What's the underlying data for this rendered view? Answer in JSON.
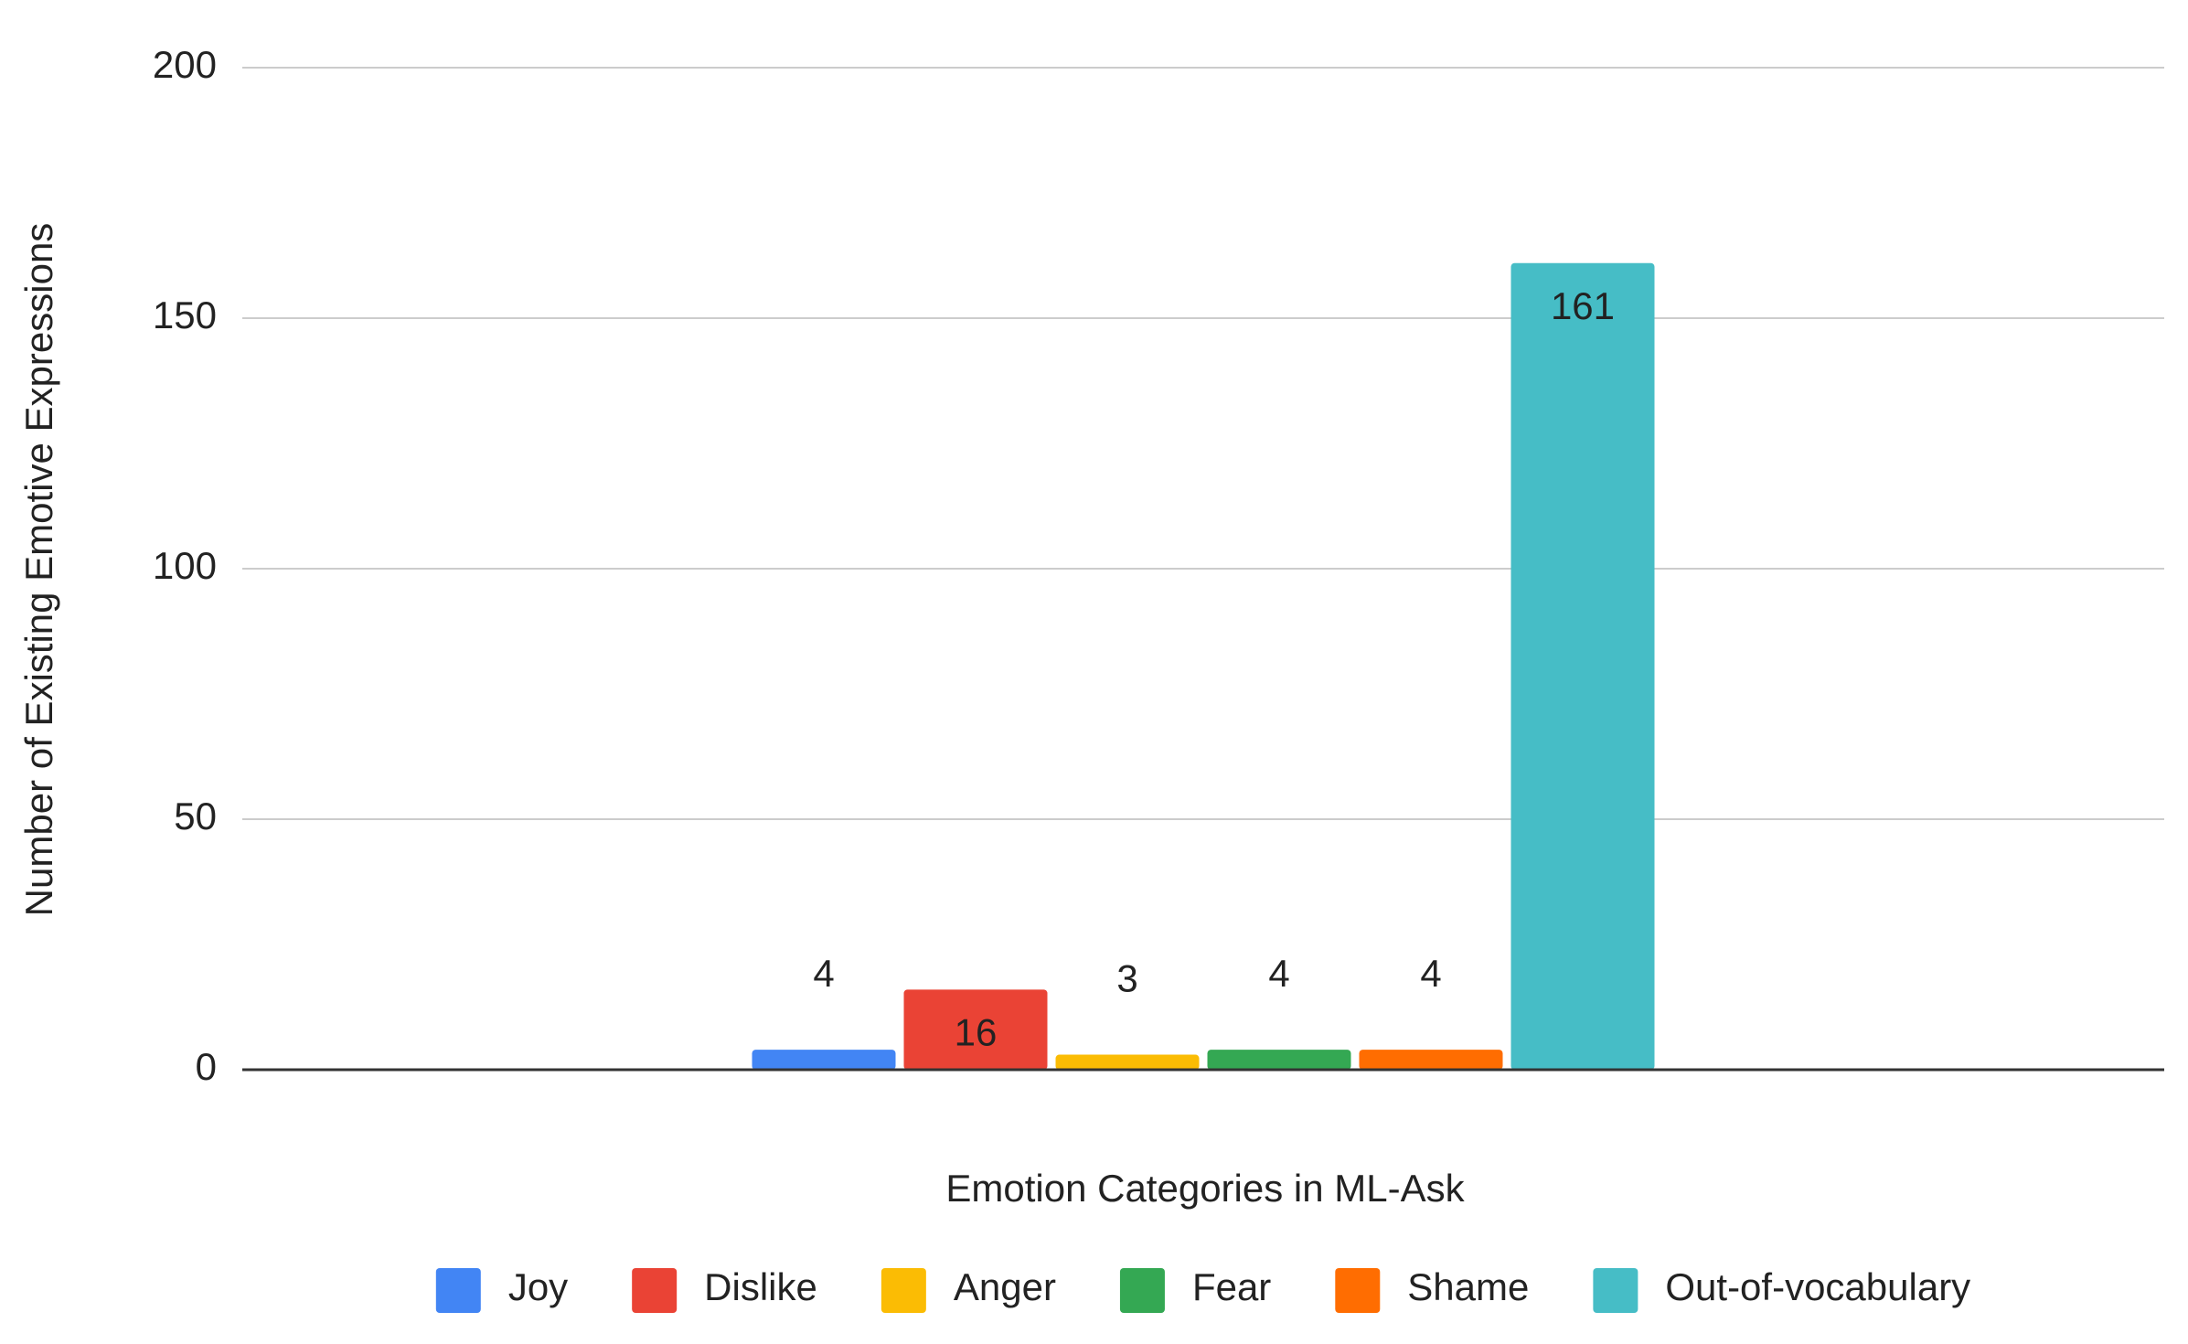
{
  "chart_data": {
    "type": "bar",
    "x_label": "Emotion Categories in ML-Ask",
    "y_label": "Number of Existing Emotive Expressions",
    "categories": [
      null
    ],
    "series": [
      {
        "name": "Joy",
        "color": "#4285f4",
        "values": [
          4
        ]
      },
      {
        "name": "Dislike",
        "color": "#ea4335",
        "values": [
          16
        ]
      },
      {
        "name": "Anger",
        "color": "#fbbc04",
        "values": [
          3
        ]
      },
      {
        "name": "Fear",
        "color": "#34a853",
        "values": [
          4
        ]
      },
      {
        "name": "Shame",
        "color": "#ff6d01",
        "values": [
          4
        ]
      },
      {
        "name": "Out-of-vocabulary",
        "color": "#46bdc6",
        "values": [
          161
        ]
      }
    ],
    "ylim": [
      0,
      200
    ],
    "yticks": [
      0,
      50,
      100,
      150,
      200
    ],
    "grid": true,
    "legend": "bottom"
  }
}
